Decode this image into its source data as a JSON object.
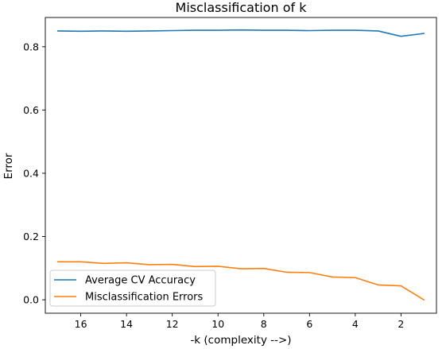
{
  "chart_data": {
    "type": "line",
    "title": "Misclassification of k",
    "xlabel": "-k (complexity -->)",
    "ylabel": "Error",
    "x_inverted": true,
    "xlim": [
      17.55,
      0.45
    ],
    "ylim": [
      -0.0425,
      0.8925
    ],
    "xticks": [
      16,
      14,
      12,
      10,
      8,
      6,
      4,
      2
    ],
    "yticks": [
      0.0,
      0.2,
      0.4,
      0.6,
      0.8
    ],
    "ytick_labels": [
      "0.0",
      "0.2",
      "0.4",
      "0.6",
      "0.8"
    ],
    "x": [
      17,
      16,
      15,
      14,
      13,
      12,
      11,
      10,
      9,
      8,
      7,
      6,
      5,
      4,
      3,
      2,
      1
    ],
    "series": [
      {
        "name": "Average CV Accuracy",
        "color": "#1f77b4",
        "values": [
          0.85,
          0.849,
          0.85,
          0.849,
          0.85,
          0.851,
          0.852,
          0.852,
          0.853,
          0.852,
          0.852,
          0.851,
          0.852,
          0.852,
          0.85,
          0.833,
          0.842
        ]
      },
      {
        "name": "Misclassification Errors",
        "color": "#ff7f0e",
        "values": [
          0.12,
          0.12,
          0.115,
          0.117,
          0.111,
          0.112,
          0.105,
          0.106,
          0.098,
          0.099,
          0.087,
          0.086,
          0.072,
          0.07,
          0.047,
          0.044,
          0.0
        ]
      }
    ],
    "legend_position": "lower-left",
    "grid": false
  }
}
